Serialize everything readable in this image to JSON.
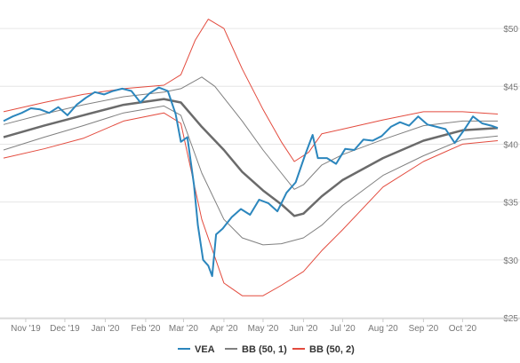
{
  "colors": {
    "price": "#2b86bd",
    "bb1": "#808080",
    "bb2": "#e34b3e",
    "mid": "#6b6b6b",
    "grid": "#e6e6e6",
    "axis_text": "#777777",
    "legend_text": "#333333"
  },
  "chart_data": {
    "type": "line",
    "title": "",
    "xlabel": "",
    "ylabel": "",
    "ylim": [
      25,
      52
    ],
    "yticks": [
      "$25",
      "$30",
      "$35",
      "$40",
      "$45",
      "$50"
    ],
    "ytick_values": [
      25,
      30,
      35,
      40,
      45,
      50
    ],
    "xticks": [
      "Nov '19",
      "Dec '19",
      "Jan '20",
      "Feb '20",
      "Mar '20",
      "Apr '20",
      "May '20",
      "Jun '20",
      "Jul '20",
      "Aug '20",
      "Sep '20",
      "Oct '20"
    ],
    "xtick_dates": [
      "2019-11-01",
      "2019-12-01",
      "2020-01-01",
      "2020-02-01",
      "2020-03-01",
      "2020-04-01",
      "2020-05-01",
      "2020-06-01",
      "2020-07-01",
      "2020-08-01",
      "2020-09-01",
      "2020-10-01"
    ],
    "x_range": [
      "2019-10-15",
      "2020-10-28"
    ],
    "grid": "horizontal",
    "legend_position": "bottom",
    "legend": [
      {
        "label": "VEA",
        "color": "#2b86bd"
      },
      {
        "label": "BB (50, 1)",
        "color": "#808080"
      },
      {
        "label": "BB (50, 2)",
        "color": "#e34b3e"
      }
    ],
    "series": [
      {
        "name": "VEA",
        "role": "price",
        "points": [
          [
            "2019-10-15",
            42.0
          ],
          [
            "2019-10-22",
            42.4
          ],
          [
            "2019-10-29",
            42.7
          ],
          [
            "2019-11-05",
            43.1
          ],
          [
            "2019-11-12",
            43.0
          ],
          [
            "2019-11-19",
            42.7
          ],
          [
            "2019-11-26",
            43.2
          ],
          [
            "2019-12-03",
            42.5
          ],
          [
            "2019-12-10",
            43.4
          ],
          [
            "2019-12-17",
            44.0
          ],
          [
            "2019-12-24",
            44.5
          ],
          [
            "2019-12-31",
            44.3
          ],
          [
            "2020-01-07",
            44.6
          ],
          [
            "2020-01-14",
            44.8
          ],
          [
            "2020-01-21",
            44.6
          ],
          [
            "2020-01-28",
            43.6
          ],
          [
            "2020-02-04",
            44.4
          ],
          [
            "2020-02-11",
            44.9
          ],
          [
            "2020-02-18",
            44.6
          ],
          [
            "2020-02-24",
            42.6
          ],
          [
            "2020-02-28",
            40.2
          ],
          [
            "2020-03-04",
            40.6
          ],
          [
            "2020-03-09",
            36.5
          ],
          [
            "2020-03-12",
            33.0
          ],
          [
            "2020-03-16",
            30.0
          ],
          [
            "2020-03-20",
            29.5
          ],
          [
            "2020-03-23",
            28.6
          ],
          [
            "2020-03-26",
            32.2
          ],
          [
            "2020-03-31",
            32.7
          ],
          [
            "2020-04-07",
            33.7
          ],
          [
            "2020-04-14",
            34.4
          ],
          [
            "2020-04-21",
            33.9
          ],
          [
            "2020-04-28",
            35.2
          ],
          [
            "2020-05-05",
            34.9
          ],
          [
            "2020-05-12",
            34.2
          ],
          [
            "2020-05-19",
            35.8
          ],
          [
            "2020-05-26",
            36.7
          ],
          [
            "2020-06-02",
            39.0
          ],
          [
            "2020-06-08",
            40.8
          ],
          [
            "2020-06-12",
            38.8
          ],
          [
            "2020-06-19",
            38.8
          ],
          [
            "2020-06-26",
            38.3
          ],
          [
            "2020-07-03",
            39.6
          ],
          [
            "2020-07-10",
            39.5
          ],
          [
            "2020-07-17",
            40.4
          ],
          [
            "2020-07-24",
            40.3
          ],
          [
            "2020-07-31",
            40.7
          ],
          [
            "2020-08-07",
            41.5
          ],
          [
            "2020-08-14",
            41.9
          ],
          [
            "2020-08-21",
            41.6
          ],
          [
            "2020-08-28",
            42.4
          ],
          [
            "2020-09-04",
            41.7
          ],
          [
            "2020-09-11",
            41.5
          ],
          [
            "2020-09-18",
            41.3
          ],
          [
            "2020-09-25",
            40.1
          ],
          [
            "2020-10-02",
            41.2
          ],
          [
            "2020-10-09",
            42.4
          ],
          [
            "2020-10-16",
            41.8
          ],
          [
            "2020-10-23",
            41.6
          ],
          [
            "2020-10-28",
            41.4
          ]
        ]
      },
      {
        "name": "BB (50, 1)",
        "role": "middle",
        "points": [
          [
            "2019-10-15",
            40.6
          ],
          [
            "2019-11-15",
            41.6
          ],
          [
            "2019-12-15",
            42.5
          ],
          [
            "2020-01-15",
            43.4
          ],
          [
            "2020-02-15",
            43.9
          ],
          [
            "2020-02-28",
            43.6
          ],
          [
            "2020-03-15",
            41.5
          ],
          [
            "2020-04-01",
            39.5
          ],
          [
            "2020-04-15",
            37.6
          ],
          [
            "2020-05-01",
            36.0
          ],
          [
            "2020-05-15",
            34.8
          ],
          [
            "2020-05-25",
            33.8
          ],
          [
            "2020-06-01",
            34.0
          ],
          [
            "2020-06-15",
            35.5
          ],
          [
            "2020-07-01",
            36.9
          ],
          [
            "2020-08-01",
            38.8
          ],
          [
            "2020-09-01",
            40.3
          ],
          [
            "2020-10-01",
            41.2
          ],
          [
            "2020-10-28",
            41.4
          ]
        ]
      },
      {
        "name": "BB (50, 1)",
        "role": "upper",
        "points": [
          [
            "2019-10-15",
            41.7
          ],
          [
            "2019-11-15",
            42.6
          ],
          [
            "2019-12-15",
            43.4
          ],
          [
            "2020-01-15",
            44.1
          ],
          [
            "2020-02-15",
            44.5
          ],
          [
            "2020-02-28",
            44.8
          ],
          [
            "2020-03-15",
            45.8
          ],
          [
            "2020-03-25",
            45.0
          ],
          [
            "2020-04-15",
            42.0
          ],
          [
            "2020-05-01",
            39.5
          ],
          [
            "2020-05-15",
            37.5
          ],
          [
            "2020-05-25",
            36.1
          ],
          [
            "2020-06-01",
            36.5
          ],
          [
            "2020-06-15",
            38.2
          ],
          [
            "2020-07-01",
            39.1
          ],
          [
            "2020-08-01",
            40.4
          ],
          [
            "2020-09-01",
            41.6
          ],
          [
            "2020-10-01",
            42.0
          ],
          [
            "2020-10-28",
            42.0
          ]
        ]
      },
      {
        "name": "BB (50, 1)",
        "role": "lower",
        "points": [
          [
            "2019-10-15",
            39.5
          ],
          [
            "2019-11-15",
            40.6
          ],
          [
            "2019-12-15",
            41.6
          ],
          [
            "2020-01-15",
            42.7
          ],
          [
            "2020-02-15",
            43.3
          ],
          [
            "2020-02-28",
            42.5
          ],
          [
            "2020-03-15",
            37.5
          ],
          [
            "2020-04-01",
            33.5
          ],
          [
            "2020-04-15",
            31.9
          ],
          [
            "2020-05-01",
            31.3
          ],
          [
            "2020-05-15",
            31.4
          ],
          [
            "2020-06-01",
            31.9
          ],
          [
            "2020-06-15",
            33.0
          ],
          [
            "2020-07-01",
            34.7
          ],
          [
            "2020-08-01",
            37.3
          ],
          [
            "2020-09-01",
            39.0
          ],
          [
            "2020-10-01",
            40.4
          ],
          [
            "2020-10-28",
            40.7
          ]
        ]
      },
      {
        "name": "BB (50, 2)",
        "role": "upper",
        "points": [
          [
            "2019-10-15",
            42.8
          ],
          [
            "2019-11-15",
            43.6
          ],
          [
            "2019-12-15",
            44.3
          ],
          [
            "2020-01-15",
            44.8
          ],
          [
            "2020-02-15",
            45.1
          ],
          [
            "2020-02-28",
            46.0
          ],
          [
            "2020-03-10",
            49.0
          ],
          [
            "2020-03-20",
            50.8
          ],
          [
            "2020-04-01",
            50.0
          ],
          [
            "2020-04-15",
            46.5
          ],
          [
            "2020-05-01",
            43.0
          ],
          [
            "2020-05-15",
            40.2
          ],
          [
            "2020-05-25",
            38.5
          ],
          [
            "2020-06-05",
            39.3
          ],
          [
            "2020-06-15",
            40.9
          ],
          [
            "2020-07-01",
            41.3
          ],
          [
            "2020-08-01",
            42.1
          ],
          [
            "2020-09-01",
            42.8
          ],
          [
            "2020-10-01",
            42.8
          ],
          [
            "2020-10-28",
            42.6
          ]
        ]
      },
      {
        "name": "BB (50, 2)",
        "role": "lower",
        "points": [
          [
            "2019-10-15",
            38.8
          ],
          [
            "2019-11-15",
            39.6
          ],
          [
            "2019-12-15",
            40.5
          ],
          [
            "2020-01-15",
            42.0
          ],
          [
            "2020-02-15",
            42.7
          ],
          [
            "2020-02-28",
            41.8
          ],
          [
            "2020-03-15",
            33.5
          ],
          [
            "2020-04-01",
            28.0
          ],
          [
            "2020-04-15",
            26.9
          ],
          [
            "2020-05-01",
            26.9
          ],
          [
            "2020-05-15",
            27.8
          ],
          [
            "2020-06-01",
            29.0
          ],
          [
            "2020-06-15",
            30.8
          ],
          [
            "2020-07-01",
            32.6
          ],
          [
            "2020-08-01",
            36.3
          ],
          [
            "2020-09-01",
            38.5
          ],
          [
            "2020-10-01",
            40.0
          ],
          [
            "2020-10-28",
            40.3
          ]
        ]
      }
    ]
  }
}
